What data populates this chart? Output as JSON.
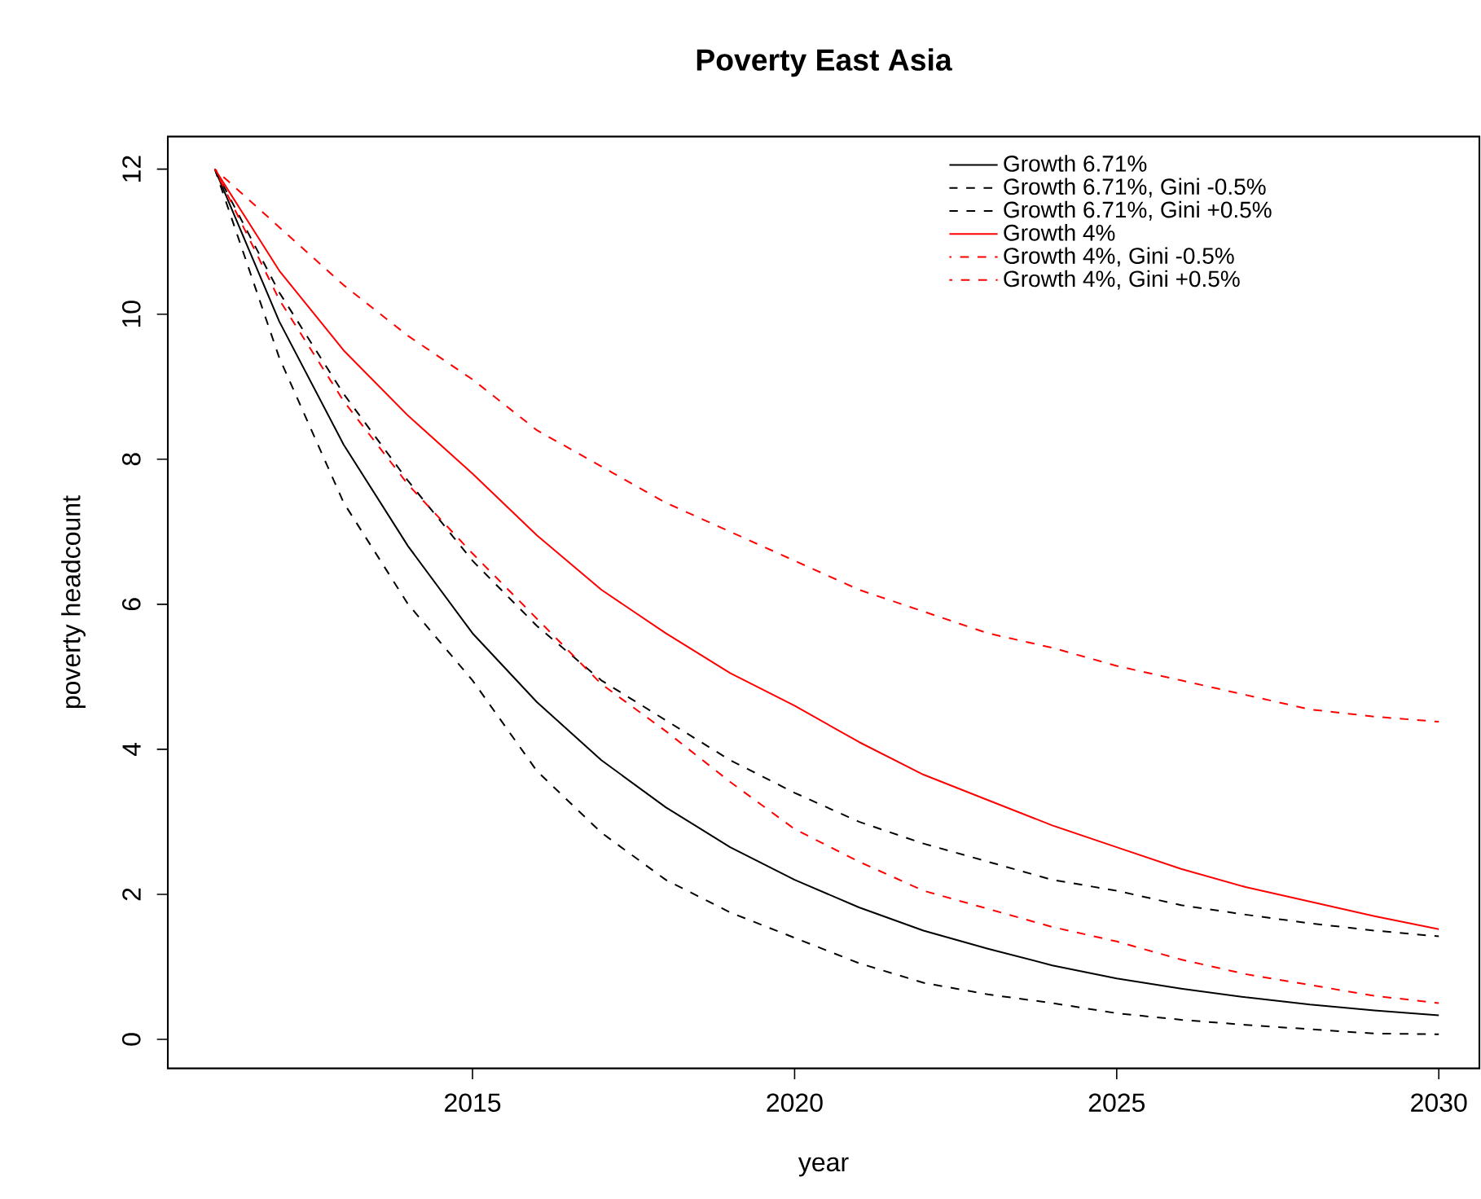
{
  "chart_data": {
    "type": "line",
    "title": "Poverty East Asia",
    "xlabel": "year",
    "ylabel": "poverty headcount",
    "x": [
      2011,
      2012,
      2013,
      2014,
      2015,
      2016,
      2017,
      2018,
      2019,
      2020,
      2021,
      2022,
      2023,
      2024,
      2025,
      2026,
      2027,
      2028,
      2029,
      2030
    ],
    "series": [
      {
        "name": "Growth 6.71%",
        "color": "#000000",
        "line_style": "solid",
        "values": [
          12,
          9.9,
          8.2,
          6.8,
          5.6,
          4.65,
          3.85,
          3.2,
          2.65,
          2.2,
          1.82,
          1.5,
          1.25,
          1.02,
          0.84,
          0.7,
          0.58,
          0.48,
          0.4,
          0.33
        ]
      },
      {
        "name": "Growth 6.71%, Gini -0.5%",
        "color": "#000000",
        "line_style": "dashed",
        "values": [
          12,
          9.4,
          7.4,
          6.0,
          4.95,
          3.7,
          2.85,
          2.2,
          1.75,
          1.4,
          1.05,
          0.78,
          0.62,
          0.5,
          0.36,
          0.27,
          0.2,
          0.14,
          0.08,
          0.07
        ]
      },
      {
        "name": "Growth 6.71%, Gini +0.5%",
        "color": "#000000",
        "line_style": "dashed",
        "values": [
          12,
          10.3,
          8.9,
          7.7,
          6.6,
          5.7,
          4.95,
          4.4,
          3.85,
          3.4,
          3.0,
          2.7,
          2.45,
          2.2,
          2.05,
          1.85,
          1.72,
          1.6,
          1.5,
          1.42
        ]
      },
      {
        "name": "Growth 4%",
        "color": "#ff0000",
        "line_style": "solid",
        "values": [
          12,
          10.6,
          9.5,
          8.6,
          7.8,
          6.95,
          6.2,
          5.6,
          5.05,
          4.6,
          4.1,
          3.65,
          3.3,
          2.95,
          2.65,
          2.35,
          2.1,
          1.9,
          1.7,
          1.52
        ]
      },
      {
        "name": "Growth 4%, Gini -0.5%",
        "color": "#ff0000",
        "line_style": "dashed",
        "values": [
          12,
          10.2,
          8.8,
          7.65,
          6.7,
          5.8,
          4.9,
          4.25,
          3.55,
          2.9,
          2.45,
          2.05,
          1.8,
          1.55,
          1.35,
          1.1,
          0.9,
          0.75,
          0.6,
          0.5
        ]
      },
      {
        "name": "Growth 4%, Gini +0.5%",
        "color": "#ff0000",
        "line_style": "dashed",
        "values": [
          12,
          11.2,
          10.4,
          9.7,
          9.1,
          8.4,
          7.9,
          7.4,
          7.0,
          6.6,
          6.2,
          5.9,
          5.6,
          5.4,
          5.15,
          4.95,
          4.75,
          4.55,
          4.45,
          4.38
        ]
      }
    ],
    "xlim": [
      2010.27,
      2030.63
    ],
    "ylim": [
      -0.4,
      12.45
    ],
    "xticks": [
      2015,
      2020,
      2025,
      2030
    ],
    "yticks": [
      0,
      2,
      4,
      6,
      8,
      10,
      12
    ],
    "grid": false,
    "legend": "top right",
    "marker": "none"
  }
}
